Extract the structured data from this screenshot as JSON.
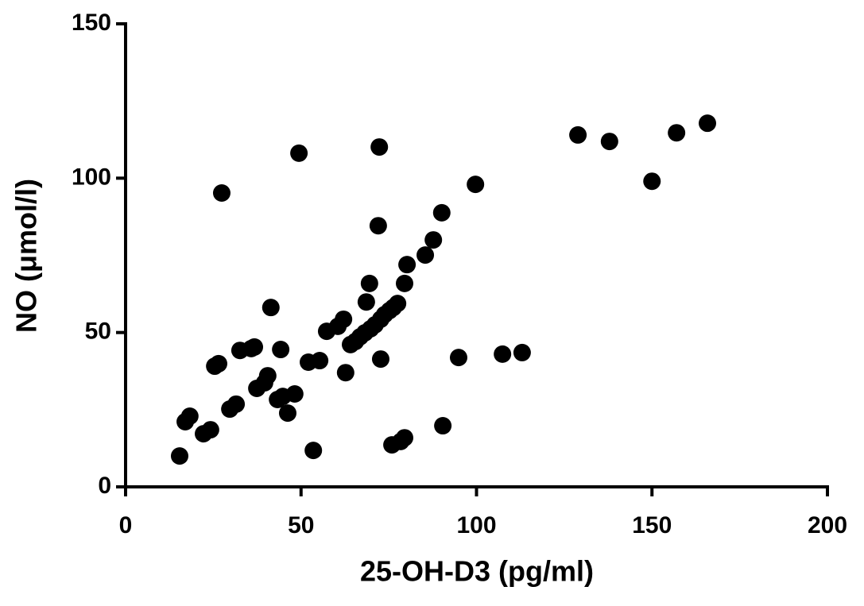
{
  "chart_data": {
    "type": "scatter",
    "xlabel": "25-OH-D3 (pg/ml)",
    "ylabel": "NO (μmol/l)",
    "color": "#000000",
    "xlim": [
      0,
      200
    ],
    "xticks": [
      0,
      50,
      100,
      150,
      200
    ],
    "ylim": [
      0,
      150
    ],
    "yticks": [
      0,
      50,
      100,
      150
    ],
    "x": [
      15.4,
      17.0,
      18.3,
      22.2,
      24.2,
      25.4,
      26.5,
      27.4,
      29.7,
      31.5,
      32.6,
      35.8,
      36.7,
      37.4,
      39.6,
      40.5,
      41.4,
      43.3,
      44.2,
      44.8,
      46.2,
      48.2,
      49.4,
      52.1,
      53.5,
      55.3,
      57.3,
      60.5,
      62.1,
      62.7,
      64.1,
      65.5,
      66.8,
      68.2,
      68.6,
      69.5,
      69.8,
      71.1,
      72.0,
      72.3,
      72.7,
      72.7,
      73.8,
      75.2,
      76.3,
      77.5,
      75.9,
      78.4,
      79.5,
      79.5,
      80.2,
      85.4,
      87.7,
      90.1,
      90.4,
      94.9,
      99.7,
      107.4,
      113.0,
      128.9,
      137.9,
      150.0,
      157.0,
      165.8
    ],
    "values": [
      10.0,
      21.1,
      22.9,
      17.2,
      18.5,
      39.1,
      39.9,
      95.2,
      25.2,
      26.8,
      44.2,
      44.8,
      45.3,
      31.9,
      33.7,
      36.0,
      58.1,
      28.3,
      44.5,
      29.3,
      23.9,
      30.1,
      108.1,
      40.4,
      11.8,
      40.9,
      50.4,
      52.0,
      54.3,
      37.0,
      46.1,
      47.1,
      48.6,
      49.9,
      59.9,
      65.9,
      51.2,
      52.5,
      84.6,
      110.1,
      41.4,
      54.3,
      55.8,
      57.1,
      58.1,
      59.4,
      13.6,
      14.7,
      15.9,
      65.9,
      72.0,
      75.1,
      80.0,
      88.8,
      19.8,
      41.9,
      98.0,
      43.0,
      43.5,
      114.0,
      111.9,
      99.0,
      114.7,
      117.8
    ]
  }
}
